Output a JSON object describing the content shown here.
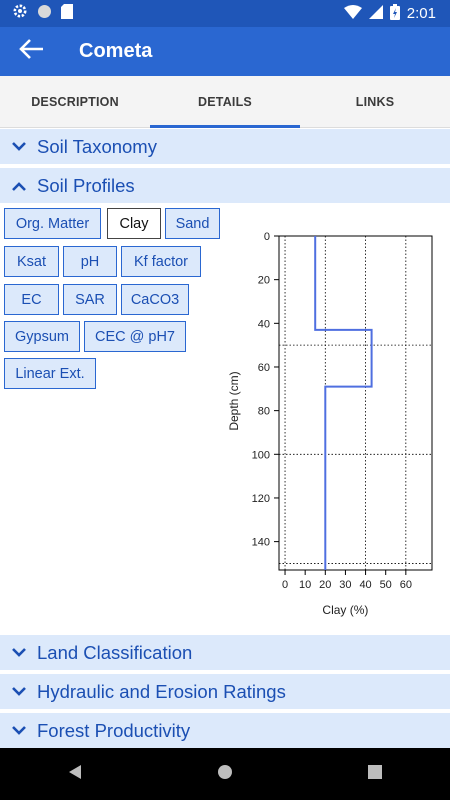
{
  "status_bar": {
    "time": "2:01"
  },
  "app_bar": {
    "title": "Cometa"
  },
  "tabs": [
    {
      "label": "DESCRIPTION",
      "active": false
    },
    {
      "label": "DETAILS",
      "active": true
    },
    {
      "label": "LINKS",
      "active": false
    }
  ],
  "sections": {
    "soil_taxonomy": "Soil Taxonomy",
    "soil_profiles": "Soil Profiles",
    "land_classification": "Land Classification",
    "hydraulic": "Hydraulic and Erosion Ratings",
    "forest": "Forest Productivity"
  },
  "property_buttons": {
    "org_matter": "Org. Matter",
    "clay": "Clay",
    "sand": "Sand",
    "ksat": "Ksat",
    "ph": "pH",
    "kf_factor": "Kf factor",
    "ec": "EC",
    "sar": "SAR",
    "caco3": "CaCO3",
    "gypsum": "Gypsum",
    "cec": "CEC @ pH7",
    "linear_ext": "Linear Ext.",
    "selected": "Clay"
  },
  "colors": {
    "accent": "#2a67d1",
    "section_bg": "#dce9fb",
    "series": "#4f6fe0"
  },
  "chart_data": {
    "type": "line",
    "xlabel": "Clay (%)",
    "ylabel": "Depth (cm)",
    "xlim": [
      -3,
      73
    ],
    "ylim": [
      0,
      153
    ],
    "y_inverted": true,
    "x_ticks": [
      0,
      10,
      20,
      30,
      40,
      50,
      60
    ],
    "y_ticks": [
      0,
      20,
      40,
      60,
      80,
      100,
      120,
      140
    ],
    "x_grid": [
      0,
      20,
      40,
      60
    ],
    "y_grid": [
      0,
      50,
      100,
      150
    ],
    "series": [
      {
        "points": [
          [
            15,
            0
          ],
          [
            15,
            43
          ],
          [
            43,
            43
          ],
          [
            43,
            69
          ],
          [
            20,
            69
          ],
          [
            20,
            153
          ]
        ]
      }
    ]
  }
}
